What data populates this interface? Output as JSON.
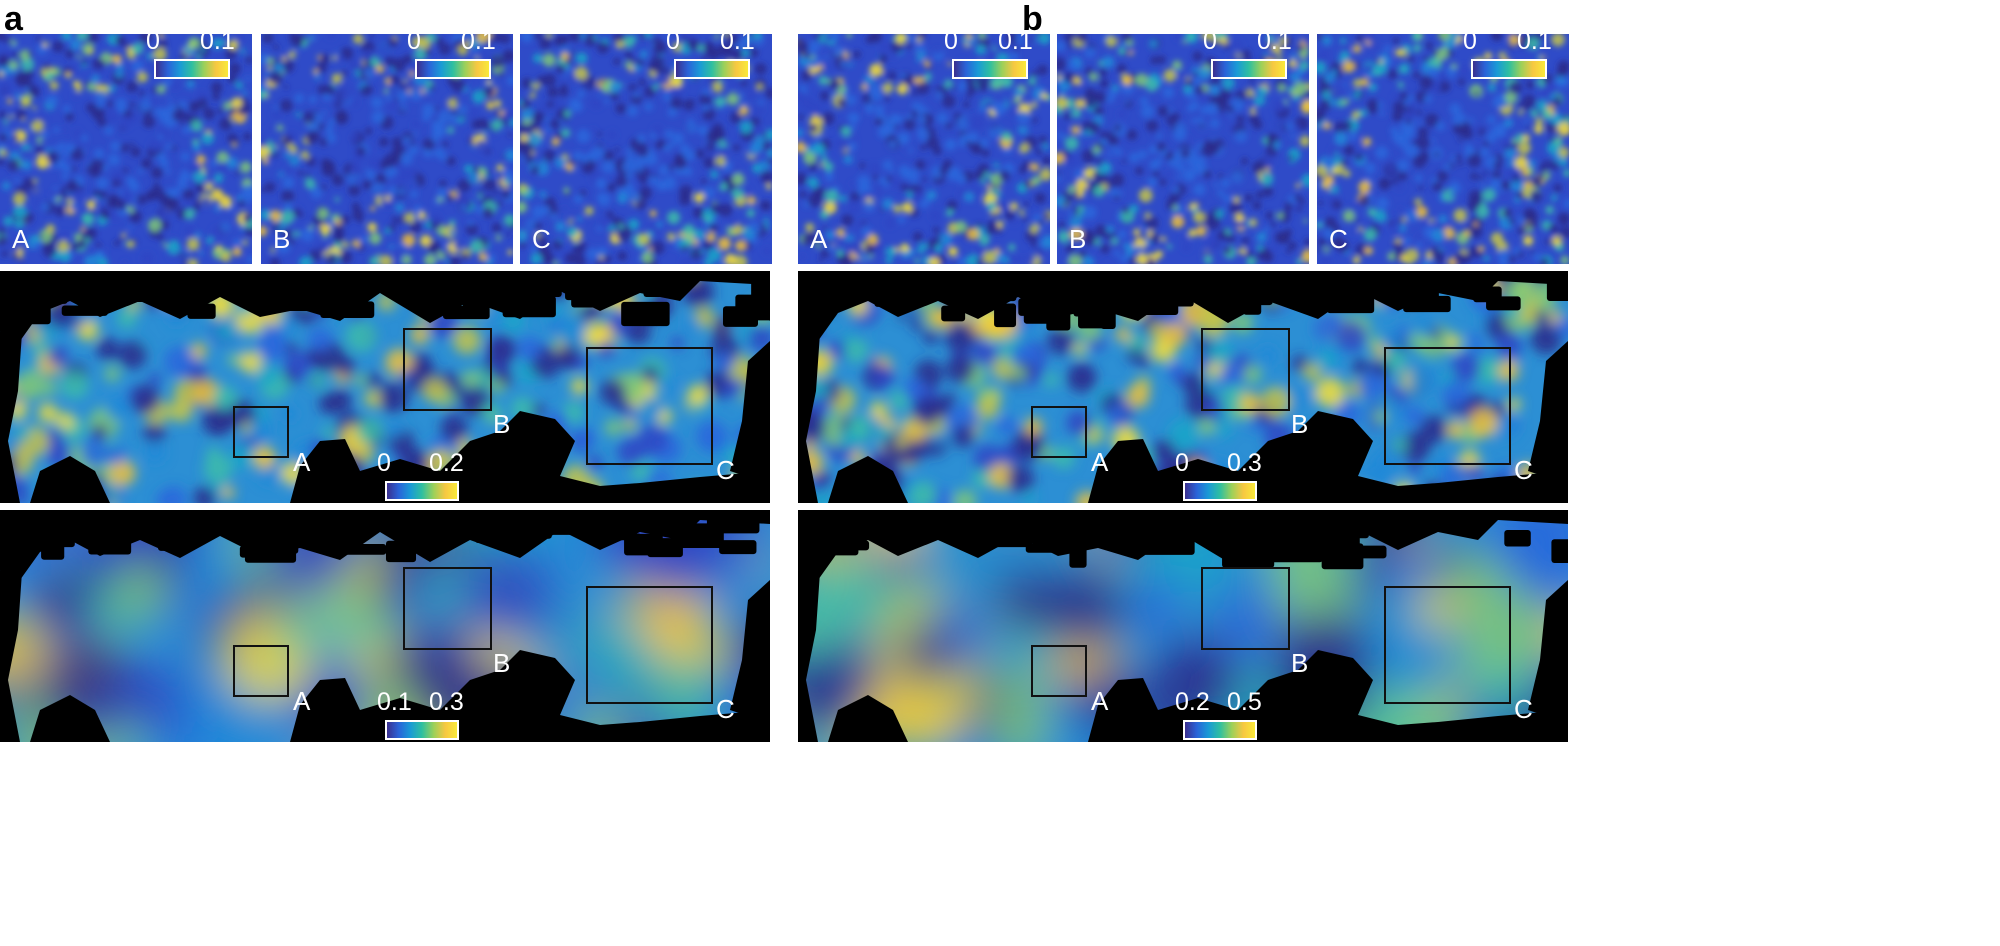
{
  "panels": [
    {
      "letter": "a"
    },
    {
      "letter": "b"
    }
  ],
  "top_tiles": {
    "labels": [
      "A",
      "B",
      "C"
    ],
    "colorbar": {
      "min": "0",
      "max": "0.1"
    }
  },
  "middle_maps": [
    {
      "colorbar": {
        "min": "0",
        "max": "0.2"
      }
    },
    {
      "colorbar": {
        "min": "0",
        "max": "0.3"
      }
    }
  ],
  "bottom_maps": [
    {
      "colorbar": {
        "min": "0.1",
        "max": "0.3"
      }
    },
    {
      "colorbar": {
        "min": "0.2",
        "max": "0.5"
      }
    }
  ],
  "roi_labels": [
    "A",
    "B",
    "C"
  ],
  "colors": {
    "low": "#3b2f8f",
    "mid": "#1a9ad6",
    "high": "#f9e93a",
    "mask": "#000000"
  }
}
